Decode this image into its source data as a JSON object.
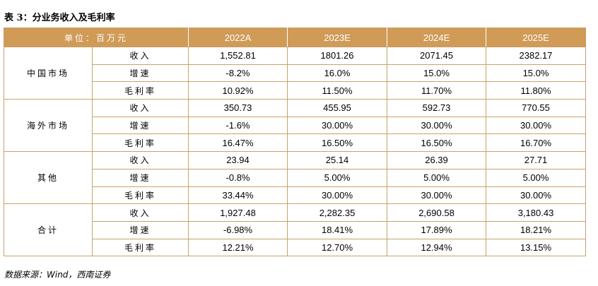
{
  "title": "表 3：分业务收入及毛利率",
  "header": {
    "unit_label": "单位：百万元",
    "years": [
      "2022A",
      "2023E",
      "2024E",
      "2025E"
    ]
  },
  "groups": [
    {
      "name": "中国市场",
      "rows": [
        {
          "metric": "收入",
          "values": [
            "1,552.81",
            "1801.26",
            "2071.45",
            "2382.17"
          ]
        },
        {
          "metric": "增速",
          "values": [
            "-8.2%",
            "16.0%",
            "15.0%",
            "15.0%"
          ]
        },
        {
          "metric": "毛利率",
          "values": [
            "10.92%",
            "11.50%",
            "11.70%",
            "11.80%"
          ]
        }
      ]
    },
    {
      "name": "海外市场",
      "rows": [
        {
          "metric": "收入",
          "values": [
            "350.73",
            "455.95",
            "592.73",
            "770.55"
          ]
        },
        {
          "metric": "增速",
          "values": [
            "-1.6%",
            "30.00%",
            "30.00%",
            "30.00%"
          ]
        },
        {
          "metric": "毛利率",
          "values": [
            "16.47%",
            "16.50%",
            "16.50%",
            "16.70%"
          ]
        }
      ]
    },
    {
      "name": "其他",
      "rows": [
        {
          "metric": "收入",
          "values": [
            "23.94",
            "25.14",
            "26.39",
            "27.71"
          ]
        },
        {
          "metric": "增速",
          "values": [
            "-0.8%",
            "5.00%",
            "5.00%",
            "5.00%"
          ]
        },
        {
          "metric": "毛利率",
          "values": [
            "33.44%",
            "30.00%",
            "30.00%",
            "30.00%"
          ]
        }
      ]
    },
    {
      "name": "合计",
      "rows": [
        {
          "metric": "收入",
          "values": [
            "1,927.48",
            "2,282.35",
            "2,690.58",
            "3,180.43"
          ]
        },
        {
          "metric": "增速",
          "values": [
            "-6.98%",
            "18.41%",
            "17.89%",
            "18.21%"
          ]
        },
        {
          "metric": "毛利率",
          "values": [
            "12.21%",
            "12.70%",
            "12.94%",
            "13.15%"
          ]
        }
      ]
    }
  ],
  "source": "数据来源：Wind，西南证券",
  "colors": {
    "header_bg": "#cf9b57",
    "border": "#c8a26a"
  }
}
